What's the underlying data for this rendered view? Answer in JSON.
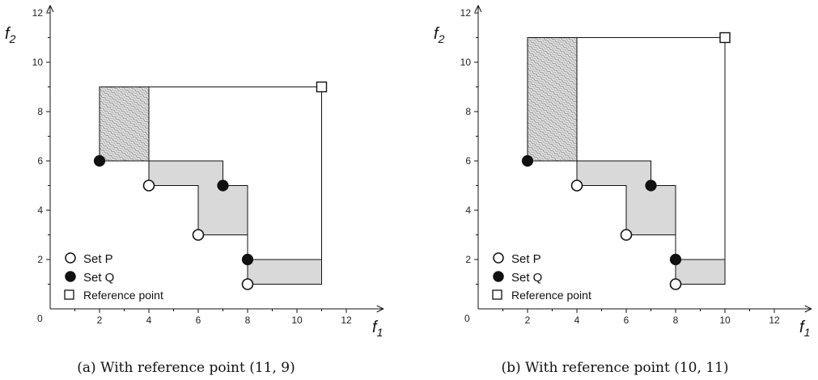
{
  "chart_data": [
    {
      "type": "scatter",
      "caption": "(a) With reference point (11, 9)",
      "xlabel": "f",
      "xlabel_sub": "1",
      "ylabel": "f",
      "ylabel_sub": "2",
      "xlim": [
        0,
        13.5
      ],
      "ylim": [
        0,
        12.3
      ],
      "xticks": [
        2,
        4,
        6,
        8,
        10,
        12
      ],
      "yticks": [
        2,
        4,
        6,
        8,
        10,
        12
      ],
      "origin_label": "0",
      "series": [
        {
          "name": "Set P",
          "marker": "open-circle",
          "points": [
            [
              4,
              5
            ],
            [
              6,
              3
            ],
            [
              8,
              1
            ]
          ]
        },
        {
          "name": "Set Q",
          "marker": "filled-circle",
          "points": [
            [
              2,
              6
            ],
            [
              7,
              5
            ],
            [
              8,
              2
            ]
          ]
        },
        {
          "name": "Reference point",
          "marker": "open-square",
          "points": [
            [
              11,
              9
            ]
          ]
        }
      ],
      "legend": {
        "position": "bottom-left",
        "labels": [
          "Set P",
          "Set Q",
          "Reference point"
        ]
      },
      "regions": {
        "q_only_hatched": [
          [
            2,
            6,
            4,
            9
          ]
        ],
        "p_only_gray": [
          [
            4,
            5,
            7,
            6
          ],
          [
            6,
            3,
            8,
            5
          ],
          [
            8,
            1,
            11,
            2
          ]
        ]
      }
    },
    {
      "type": "scatter",
      "caption": "(b) With reference point (10, 11)",
      "xlabel": "f",
      "xlabel_sub": "1",
      "ylabel": "f",
      "ylabel_sub": "2",
      "xlim": [
        0,
        13.5
      ],
      "ylim": [
        0,
        12.3
      ],
      "xticks": [
        2,
        4,
        6,
        8,
        10,
        12
      ],
      "yticks": [
        2,
        4,
        6,
        8,
        10,
        12
      ],
      "origin_label": "0",
      "series": [
        {
          "name": "Set P",
          "marker": "open-circle",
          "points": [
            [
              4,
              5
            ],
            [
              6,
              3
            ],
            [
              8,
              1
            ]
          ]
        },
        {
          "name": "Set Q",
          "marker": "filled-circle",
          "points": [
            [
              2,
              6
            ],
            [
              7,
              5
            ],
            [
              8,
              2
            ]
          ]
        },
        {
          "name": "Reference point",
          "marker": "open-square",
          "points": [
            [
              10,
              11
            ]
          ]
        }
      ],
      "legend": {
        "position": "bottom-left",
        "labels": [
          "Set P",
          "Set Q",
          "Reference point"
        ]
      },
      "regions": {
        "q_only_hatched": [
          [
            2,
            6,
            4,
            11
          ]
        ],
        "p_only_gray": [
          [
            4,
            5,
            7,
            6
          ],
          [
            6,
            3,
            8,
            5
          ],
          [
            8,
            1,
            10,
            2
          ]
        ]
      }
    }
  ],
  "colors": {
    "gray_fill": "#d9d9d9",
    "hatch_bg": "#e2e2e2",
    "hatch_line": "#777777",
    "ink": "#111111"
  }
}
